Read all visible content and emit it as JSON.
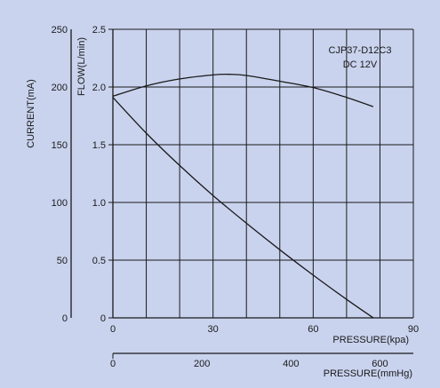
{
  "chart_data": {
    "type": "line",
    "annotation": [
      "CJP37-D12C3",
      "DC 12V"
    ],
    "current_axis": {
      "label": "CURRENT(mA)",
      "range": [
        0,
        250
      ],
      "ticks": [
        "0",
        "50",
        "100",
        "150",
        "200",
        "250"
      ]
    },
    "flow_axis": {
      "label": "FLOW(L/min)",
      "range": [
        0,
        2.5
      ],
      "ticks": [
        "0",
        "0.5",
        "1.0",
        "1.5",
        "2.0",
        "2.5"
      ]
    },
    "pressure_kpa_axis": {
      "label": "PRESSURE(kpa)",
      "range": [
        0,
        90
      ],
      "ticks": [
        "0",
        "30",
        "60",
        "90"
      ]
    },
    "pressure_mmhg_axis": {
      "label": "PRESSURE(mmHg)",
      "range": [
        0,
        675
      ],
      "ticks": [
        "0",
        "200",
        "400",
        "600"
      ]
    },
    "grid": true,
    "series": [
      {
        "axis": "current",
        "color": "#1a1a1a",
        "x": [
          0,
          10,
          20,
          30,
          35,
          40,
          50,
          60,
          70,
          78
        ],
        "y": [
          192,
          201,
          207,
          210.5,
          211,
          210,
          205,
          199.5,
          191,
          183
        ]
      },
      {
        "axis": "flow",
        "color": "#1a1a1a",
        "x": [
          0,
          10,
          20,
          30,
          40,
          50,
          60,
          70,
          78
        ],
        "y": [
          1.91,
          1.6,
          1.32,
          1.06,
          0.82,
          0.59,
          0.37,
          0.16,
          0.0
        ]
      }
    ]
  }
}
